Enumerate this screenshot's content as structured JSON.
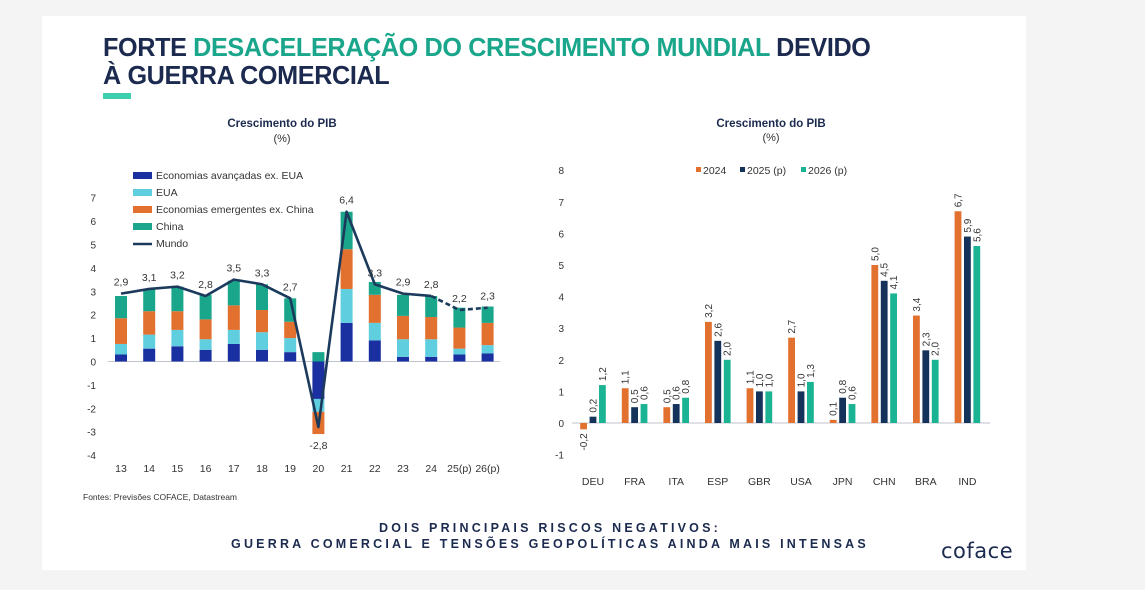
{
  "title": {
    "part1": "FORTE ",
    "accent": "DESACELERAÇÃO DO CRESCIMENTO MUNDIAL",
    "part2": " DEVIDO",
    "line2": "À GUERRA COMERCIAL"
  },
  "source": "Fontes: Previsões COFACE, Datastream",
  "footer": {
    "line1": "DOIS PRINCIPAIS RISCOS NEGATIVOS:",
    "line2": "GUERRA COMERCIAL E TENSÕES GEOPOLÍTICAS AINDA MAIS INTENSAS"
  },
  "logo": "coface",
  "colors": {
    "advanced": "#1a2fa0",
    "usa": "#5fcfe0",
    "emerging": "#e2702e",
    "china": "#1aa68b",
    "world": "#1b3a5c",
    "y2024": "#e2702e",
    "y2025": "#14325a",
    "y2026": "#1ab394"
  },
  "chart_data": [
    {
      "type": "bar",
      "stacked": true,
      "title": "Crescimento do PIB",
      "subtitle": "(%)",
      "xlabel": "",
      "ylabel": "",
      "ylim": [
        -4,
        7
      ],
      "yticks": [
        -4,
        -3,
        -2,
        -1,
        0,
        1,
        2,
        3,
        4,
        5,
        6,
        7
      ],
      "grid": false,
      "legend_position": "top-left",
      "categories": [
        "13",
        "14",
        "15",
        "16",
        "17",
        "18",
        "19",
        "20",
        "21",
        "22",
        "23",
        "24",
        "25(p)",
        "26(p)"
      ],
      "series": [
        {
          "name": "Economias avançadas ex. EUA",
          "values": [
            0.3,
            0.55,
            0.65,
            0.5,
            0.75,
            0.5,
            0.4,
            -1.6,
            1.65,
            0.9,
            0.2,
            0.2,
            0.3,
            0.35
          ]
        },
        {
          "name": "EUA",
          "values": [
            0.45,
            0.6,
            0.7,
            0.45,
            0.6,
            0.75,
            0.6,
            -0.55,
            1.45,
            0.75,
            0.75,
            0.75,
            0.25,
            0.35
          ]
        },
        {
          "name": "Economias emergentes ex. China",
          "values": [
            1.1,
            1.0,
            0.8,
            0.85,
            1.05,
            0.95,
            0.7,
            -0.95,
            1.7,
            1.2,
            1.0,
            0.95,
            0.9,
            0.95
          ]
        },
        {
          "name": "China",
          "values": [
            0.95,
            0.95,
            1.05,
            1.05,
            1.05,
            1.1,
            1.0,
            0.4,
            1.6,
            0.55,
            0.9,
            0.9,
            0.85,
            0.7
          ]
        }
      ],
      "line": {
        "name": "Mundo",
        "values": [
          2.9,
          3.1,
          3.2,
          2.8,
          3.5,
          3.3,
          2.7,
          -2.8,
          6.4,
          3.3,
          2.9,
          2.8,
          2.2,
          2.3
        ],
        "labels": [
          "2,9",
          "3,1",
          "3,2",
          "2,8",
          "3,5",
          "3,3",
          "2,7",
          "-2,8",
          "6,4",
          "3,3",
          "2,9",
          "2,8",
          "2,2",
          "2,3"
        ],
        "dashed_from_index": 11
      }
    },
    {
      "type": "bar",
      "stacked": false,
      "title": "Crescimento do PIB",
      "subtitle": "(%)",
      "xlabel": "",
      "ylabel": "",
      "ylim": [
        -1,
        8
      ],
      "yticks": [
        -1,
        0,
        1,
        2,
        3,
        4,
        5,
        6,
        7,
        8
      ],
      "grid": false,
      "legend_position": "top",
      "categories": [
        "DEU",
        "FRA",
        "ITA",
        "ESP",
        "GBR",
        "USA",
        "JPN",
        "CHN",
        "BRA",
        "IND"
      ],
      "series": [
        {
          "name": "2024",
          "values": [
            -0.2,
            1.1,
            0.5,
            3.2,
            1.1,
            2.7,
            0.1,
            5.0,
            3.4,
            6.7
          ],
          "labels": [
            "-0,2",
            "1,1",
            "0,5",
            "3,2",
            "1,1",
            "2,7",
            "0,1",
            "5,0",
            "3,4",
            "6,7"
          ]
        },
        {
          "name": "2025 (p)",
          "values": [
            0.2,
            0.5,
            0.6,
            2.6,
            1.0,
            1.0,
            0.8,
            4.5,
            2.3,
            5.9
          ],
          "labels": [
            "0,2",
            "0,5",
            "0,6",
            "2,6",
            "1,0",
            "1,0",
            "0,8",
            "4,5",
            "2,3",
            "5,9"
          ]
        },
        {
          "name": "2026 (p)",
          "values": [
            1.2,
            0.6,
            0.8,
            2.0,
            1.0,
            1.3,
            0.6,
            4.1,
            2.0,
            5.6
          ],
          "labels": [
            "1,2",
            "0,6",
            "0,8",
            "2,0",
            "1,0",
            "1,3",
            "0,6",
            "4,1",
            "2,0",
            "5,6"
          ]
        }
      ]
    }
  ]
}
